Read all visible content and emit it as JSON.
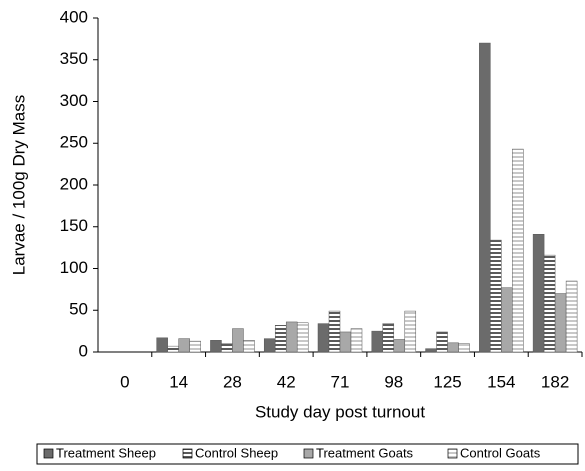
{
  "chart_data": {
    "type": "bar",
    "x_label": "Study day post turnout",
    "y_label": "Larvae / 100g Dry Mass",
    "categories": [
      "0",
      "14",
      "28",
      "42",
      "71",
      "98",
      "125",
      "154",
      "182"
    ],
    "series": [
      {
        "name": "Treatment Sheep",
        "color": "#6b6b6b",
        "pattern": "solid",
        "values": [
          0,
          17,
          14,
          16,
          34,
          25,
          4,
          370,
          141
        ]
      },
      {
        "name": "Control Sheep",
        "color": "#5a5a5a",
        "pattern": "stripes",
        "values": [
          0,
          7,
          10,
          32,
          49,
          34,
          24,
          134,
          116
        ]
      },
      {
        "name": "Treatment Goats",
        "color": "#a8a8a8",
        "pattern": "solid",
        "values": [
          0,
          16,
          28,
          36,
          24,
          15,
          11,
          77,
          70
        ]
      },
      {
        "name": "Control Goats",
        "color": "#c8c8c8",
        "pattern": "stripes",
        "values": [
          0,
          13,
          14,
          35,
          28,
          49,
          10,
          243,
          85
        ]
      }
    ],
    "ylim": [
      0,
      400
    ],
    "yticks": [
      0,
      50,
      100,
      150,
      200,
      250,
      300,
      350,
      400
    ],
    "grid": false
  }
}
